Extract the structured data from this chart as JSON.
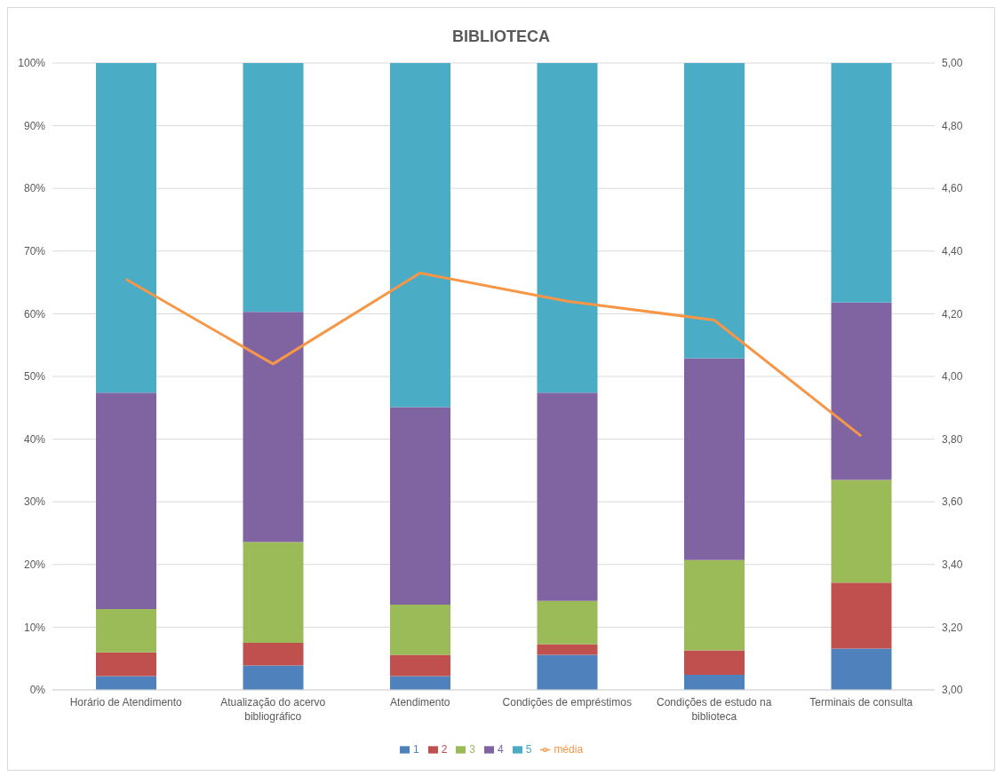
{
  "chart_data": {
    "type": "bar",
    "title": "BIBLIOTECA",
    "stacked": true,
    "categories": [
      "Horário de Atendimento",
      "Atualização do acervo bibliográfico",
      "Atendimento",
      "Condições de empréstimos",
      "Condições de estudo na biblioteca",
      "Terminais de consulta"
    ],
    "series": [
      {
        "name": "1",
        "color": "#4f81bd",
        "values": [
          2.2,
          3.9,
          2.2,
          5.6,
          2.4,
          6.6
        ]
      },
      {
        "name": "2",
        "color": "#c0504d",
        "values": [
          3.8,
          3.6,
          3.4,
          1.7,
          3.9,
          10.5
        ]
      },
      {
        "name": "3",
        "color": "#9bbb59",
        "values": [
          6.9,
          16.1,
          8.0,
          6.9,
          14.4,
          16.4
        ]
      },
      {
        "name": "4",
        "color": "#8064a2",
        "values": [
          34.5,
          36.7,
          31.5,
          33.2,
          32.2,
          28.3
        ]
      },
      {
        "name": "5",
        "color": "#4bacc6",
        "values": [
          52.6,
          39.7,
          54.9,
          52.6,
          47.1,
          38.2
        ]
      },
      {
        "name": "média",
        "type": "line",
        "axis": "y2",
        "color": "#f79646",
        "values": [
          4.31,
          4.04,
          4.33,
          4.24,
          4.18,
          3.81
        ]
      }
    ],
    "ylim": [
      0,
      100
    ],
    "yticks": [
      {
        "value": 0,
        "label": "0%"
      },
      {
        "value": 10,
        "label": "10%"
      },
      {
        "value": 20,
        "label": "20%"
      },
      {
        "value": 30,
        "label": "30%"
      },
      {
        "value": 40,
        "label": "40%"
      },
      {
        "value": 50,
        "label": "50%"
      },
      {
        "value": 60,
        "label": "60%"
      },
      {
        "value": 70,
        "label": "70%"
      },
      {
        "value": 80,
        "label": "80%"
      },
      {
        "value": 90,
        "label": "90%"
      },
      {
        "value": 100,
        "label": "100%"
      }
    ],
    "y2lim": [
      3,
      5
    ],
    "y2ticks": [
      {
        "value": 3,
        "label": "3,00"
      },
      {
        "value": 3.2,
        "label": "3,20"
      },
      {
        "value": 3.4,
        "label": "3,40"
      },
      {
        "value": 3.6,
        "label": "3,60"
      },
      {
        "value": 3.8,
        "label": "3,80"
      },
      {
        "value": 4,
        "label": "4,00"
      },
      {
        "value": 4.2,
        "label": "4,20"
      },
      {
        "value": 4.4,
        "label": "4,40"
      },
      {
        "value": 4.6,
        "label": "4,60"
      },
      {
        "value": 4.8,
        "label": "4,80"
      },
      {
        "value": 5,
        "label": "5,00"
      }
    ],
    "grid": "y",
    "legend": "bottom",
    "marker": "none",
    "line_style": "solid"
  }
}
